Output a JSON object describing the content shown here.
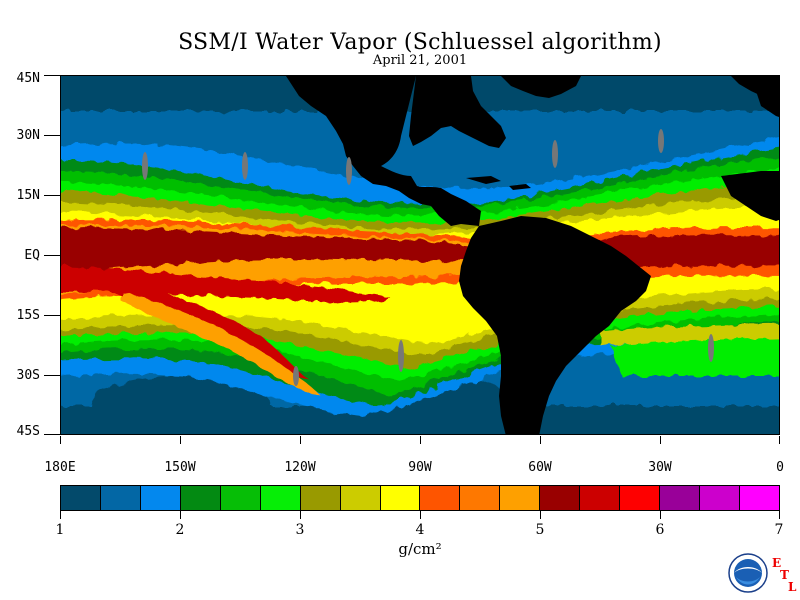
{
  "header": {
    "title": "SSM/I Water Vapor (Schluessel algorithm)",
    "date": "April 21, 2001"
  },
  "map": {
    "lat_labels": [
      "45N",
      "30N",
      "15N",
      "EQ",
      "15S",
      "30S",
      "45S"
    ],
    "lon_labels": [
      "180E",
      "150W",
      "120W",
      "90W",
      "60W",
      "30W",
      "0"
    ],
    "land_color": "#000000",
    "extent": {
      "lon": [
        -180,
        0
      ],
      "lat": [
        -45,
        45
      ]
    }
  },
  "colorbar": {
    "colors": [
      "#034a6b",
      "#0367a5",
      "#0388ee",
      "#038a12",
      "#06be06",
      "#06ee06",
      "#999a00",
      "#cccc00",
      "#ffff00",
      "#fe5500",
      "#fe7800",
      "#fea000",
      "#990000",
      "#cc0000",
      "#fe0000",
      "#990099",
      "#cc00cc",
      "#ff00ff"
    ],
    "tick_labels": [
      "1",
      "2",
      "3",
      "4",
      "5",
      "6",
      "7"
    ],
    "units": "g/cm²"
  },
  "logo": {
    "name": "NOAA",
    "letters": [
      "E",
      "T",
      "L"
    ]
  }
}
